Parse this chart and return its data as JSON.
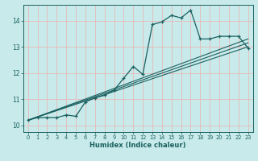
{
  "title": "",
  "xlabel": "Humidex (Indice chaleur)",
  "bg_color": "#c8eaea",
  "grid_color": "#e8b8b8",
  "line_color": "#1a6060",
  "xlim": [
    -0.5,
    23.5
  ],
  "ylim": [
    9.75,
    14.6
  ],
  "xticks": [
    0,
    1,
    2,
    3,
    4,
    5,
    6,
    7,
    8,
    9,
    10,
    11,
    12,
    13,
    14,
    15,
    16,
    17,
    18,
    19,
    20,
    21,
    22,
    23
  ],
  "yticks": [
    10,
    11,
    12,
    13,
    14
  ],
  "series1_x": [
    0,
    1,
    2,
    3,
    4,
    5,
    6,
    7,
    8,
    9,
    10,
    11,
    12,
    13,
    14,
    15,
    16,
    17,
    18,
    19,
    20,
    21,
    22,
    23
  ],
  "series1_y": [
    10.2,
    10.3,
    10.3,
    10.3,
    10.4,
    10.35,
    10.9,
    11.05,
    11.15,
    11.35,
    11.8,
    12.25,
    11.95,
    13.85,
    13.95,
    14.2,
    14.1,
    14.4,
    13.3,
    13.3,
    13.4,
    13.4,
    13.4,
    12.95
  ],
  "line1_x": [
    0,
    23
  ],
  "line1_y": [
    10.2,
    13.0
  ],
  "line2_x": [
    0,
    23
  ],
  "line2_y": [
    10.2,
    13.3
  ],
  "line3_x": [
    0,
    23
  ],
  "line3_y": [
    10.2,
    13.15
  ]
}
